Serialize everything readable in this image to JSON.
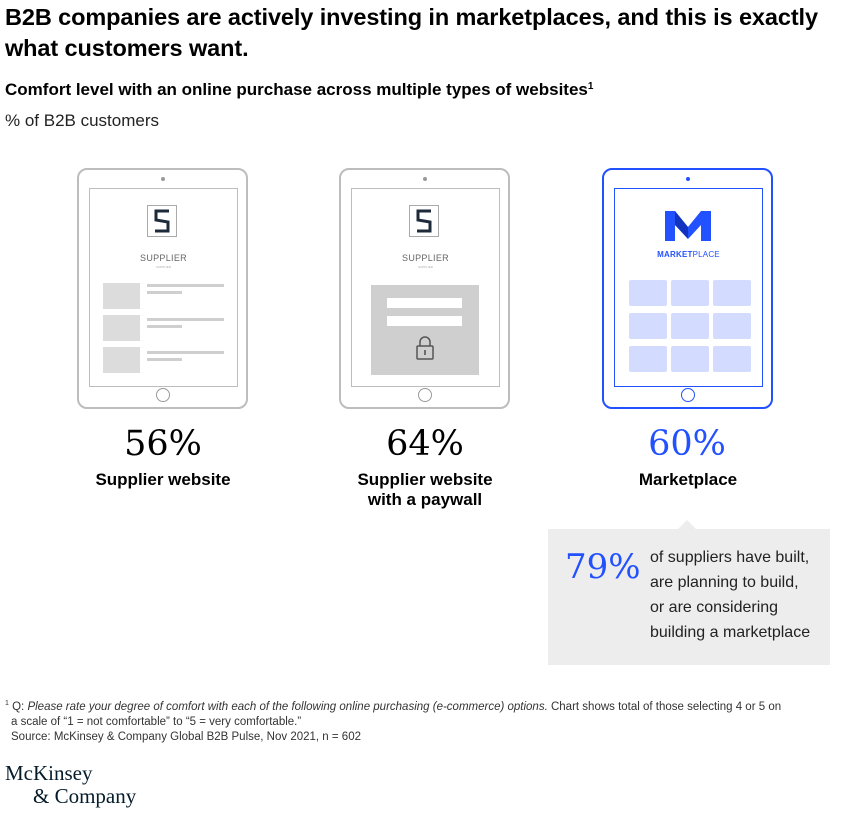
{
  "title": "B2B companies are actively investing in marketplaces, and this is exactly what customers want.",
  "subtitle": "Comfort level with an online purchase across multiple types of websites",
  "subtitle_footnote_mark": "1",
  "unit_label": "% of B2B customers",
  "colors": {
    "accent": "#2251ff",
    "grey": "#bdbdbd",
    "callout_bg": "#ededed"
  },
  "chart_data": {
    "type": "table",
    "title": "Comfort level with an online purchase across multiple types of websites",
    "unit": "% of B2B customers",
    "categories": [
      "Supplier website",
      "Supplier website with a paywall",
      "Marketplace"
    ],
    "values": [
      56,
      64,
      60
    ],
    "highlight_index": 2
  },
  "tablets": [
    {
      "screen_label": "SUPPLIER",
      "screen_sub": "SUPPLIER",
      "pct": "56%",
      "label_line1": "Supplier website",
      "label_line2": ""
    },
    {
      "screen_label": "SUPPLIER",
      "screen_sub": "SUPPLIER",
      "pct": "64%",
      "label_line1": "Supplier website",
      "label_line2": "with a paywall"
    },
    {
      "screen_label_bold": "MARKET",
      "screen_label_light": "PLACE",
      "pct": "60%",
      "label_line1": "Marketplace",
      "label_line2": ""
    }
  ],
  "callout": {
    "value": "79%",
    "lines": [
      "of suppliers have built,",
      "are planning to build,",
      "or are considering",
      "building a marketplace"
    ]
  },
  "footnote": {
    "mark": "1",
    "q_prefix": "Q: ",
    "question": "Please rate your degree of comfort with each of the following online purchasing (e-commerce) options.",
    "rest1": " Chart shows total of those selecting 4 or 5 on",
    "line2": "a scale of “1 = not comfortable” to “5 = very comfortable.”",
    "source": "Source: McKinsey & Company Global B2B Pulse, Nov 2021, n = 602"
  },
  "brand": {
    "line1": "McKinsey",
    "line2": "& Company"
  }
}
